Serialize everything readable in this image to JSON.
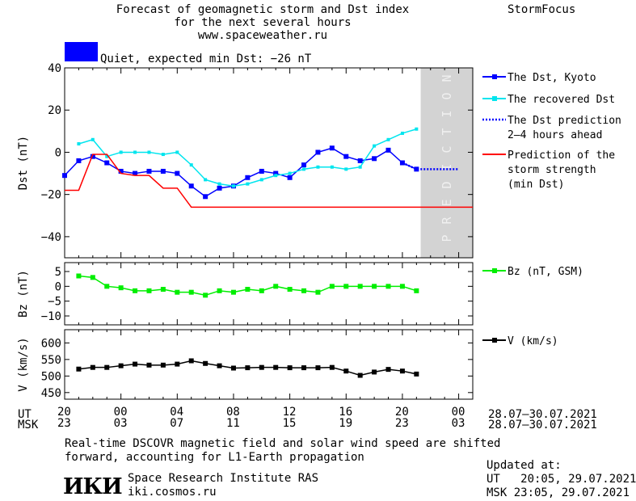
{
  "header": {
    "title_line1": "Forecast of geomagnetic storm and Dst index",
    "title_line2": "for the next several hours",
    "site": "www.spaceweather.ru",
    "brand": "StormFocus"
  },
  "status": {
    "color": "#0000ff",
    "text": "Quiet, expected min Dst: −26 nT"
  },
  "colors": {
    "dst": "#0000ff",
    "recovered": "#00e5ee",
    "prediction": "#0000ff",
    "storm": "#ff0000",
    "bz": "#00ee00",
    "v": "#000000",
    "shade": "#d3d3d3"
  },
  "shade_label": "PREDICTION",
  "time_axis": {
    "ut_label": "UT",
    "msk_label": "MSK",
    "ut_ticks": [
      "20",
      "00",
      "04",
      "08",
      "12",
      "16",
      "20",
      "00"
    ],
    "msk_ticks": [
      "23",
      "03",
      "07",
      "11",
      "15",
      "19",
      "23",
      "03"
    ],
    "ut_range": "28.07–30.07.2021",
    "msk_range": "28.07–30.07.2021"
  },
  "chart_data": [
    {
      "type": "line",
      "ylabel": "Dst (nT)",
      "ylim": [
        -50,
        40
      ],
      "yticks": [
        "40",
        "20",
        "0",
        "−20",
        "−40"
      ],
      "x_hours": "hours from 20:00 UT 28.07.2021",
      "series": [
        {
          "name": "The Dst, Kyoto",
          "x": [
            0,
            1,
            2,
            3,
            4,
            5,
            6,
            7,
            8,
            9,
            10,
            11,
            12,
            13,
            14,
            15,
            16,
            17,
            18,
            19,
            20,
            21,
            22,
            23,
            24,
            25
          ],
          "y": [
            -11,
            -4,
            -2,
            -5,
            -9,
            -10,
            -9,
            -9,
            -10,
            -16,
            -21,
            -17,
            -16,
            -12,
            -9,
            -10,
            -12,
            -6,
            0,
            2,
            -2,
            -4,
            -3,
            1,
            -5,
            -8
          ]
        },
        {
          "name": "The recovered Dst",
          "x": [
            1,
            2,
            3,
            4,
            5,
            6,
            7,
            8,
            9,
            10,
            11,
            12,
            13,
            14,
            15,
            16,
            17,
            18,
            19,
            20,
            21,
            22,
            23,
            24,
            25
          ],
          "y": [
            4,
            6,
            -2,
            0,
            0,
            0,
            -1,
            0,
            -6,
            -13,
            -15,
            -16,
            -15,
            -13,
            -11,
            -10,
            -8,
            -7,
            -7,
            -8,
            -7,
            3,
            6,
            9,
            11
          ]
        },
        {
          "name": "The Dst prediction\n2–4 hours ahead",
          "x": [
            24,
            25,
            26,
            27,
            28
          ],
          "y": [
            -5,
            -8,
            -8,
            -8,
            -8
          ]
        },
        {
          "name": "Prediction of the\nstorm strength\n(min Dst)",
          "x": [
            0,
            1,
            2,
            3,
            4,
            5,
            6,
            7,
            8,
            9,
            10,
            15,
            20,
            25,
            29
          ],
          "y": [
            -18,
            -18,
            -1,
            -1,
            -10,
            -11,
            -11,
            -17,
            -17,
            -26,
            -26,
            -26,
            -26,
            -26,
            -26
          ]
        }
      ],
      "prediction_start": 25.3
    },
    {
      "type": "line",
      "ylabel": "Bz (nT)",
      "ylim": [
        -13,
        8
      ],
      "yticks": [
        "5",
        "0",
        "−5",
        "−10"
      ],
      "series": [
        {
          "name": "Bz (nT, GSM)",
          "x": [
            1,
            2,
            3,
            4,
            5,
            6,
            7,
            8,
            9,
            10,
            11,
            12,
            13,
            14,
            15,
            16,
            17,
            18,
            19,
            20,
            21,
            22,
            23,
            24,
            25
          ],
          "y": [
            3.5,
            3,
            0,
            -0.5,
            -1.5,
            -1.5,
            -1,
            -2,
            -2,
            -3,
            -1.5,
            -2,
            -1,
            -1.5,
            0,
            -1,
            -1.5,
            -2,
            0,
            0,
            0,
            0,
            0,
            0,
            -1.5
          ]
        }
      ]
    },
    {
      "type": "line",
      "ylabel": "V (km/s)",
      "ylim": [
        430,
        640
      ],
      "yticks": [
        "600",
        "550",
        "500",
        "450"
      ],
      "series": [
        {
          "name": "V (km/s)",
          "x": [
            1,
            2,
            3,
            4,
            5,
            6,
            7,
            8,
            9,
            10,
            11,
            12,
            13,
            14,
            15,
            16,
            17,
            18,
            19,
            20,
            21,
            22,
            23,
            24,
            25
          ],
          "y": [
            521,
            526,
            526,
            531,
            536,
            533,
            533,
            536,
            546,
            538,
            531,
            524,
            525,
            526,
            526,
            525,
            525,
            525,
            526,
            515,
            502,
            512,
            520,
            515,
            506
          ]
        }
      ]
    }
  ],
  "footer": {
    "note_line1": "Real-time DSCOVR magnetic field and solar wind speed are shifted",
    "note_line2": "forward, accounting for L1-Earth propagation",
    "logo": "ИКИ",
    "institute": "Space Research Institute RAS",
    "site": "iki.cosmos.ru",
    "updated_label": "Updated at:",
    "updated_ut": "UT   20:05, 29.07.2021",
    "updated_msk": "MSK 23:05, 29.07.2021"
  }
}
